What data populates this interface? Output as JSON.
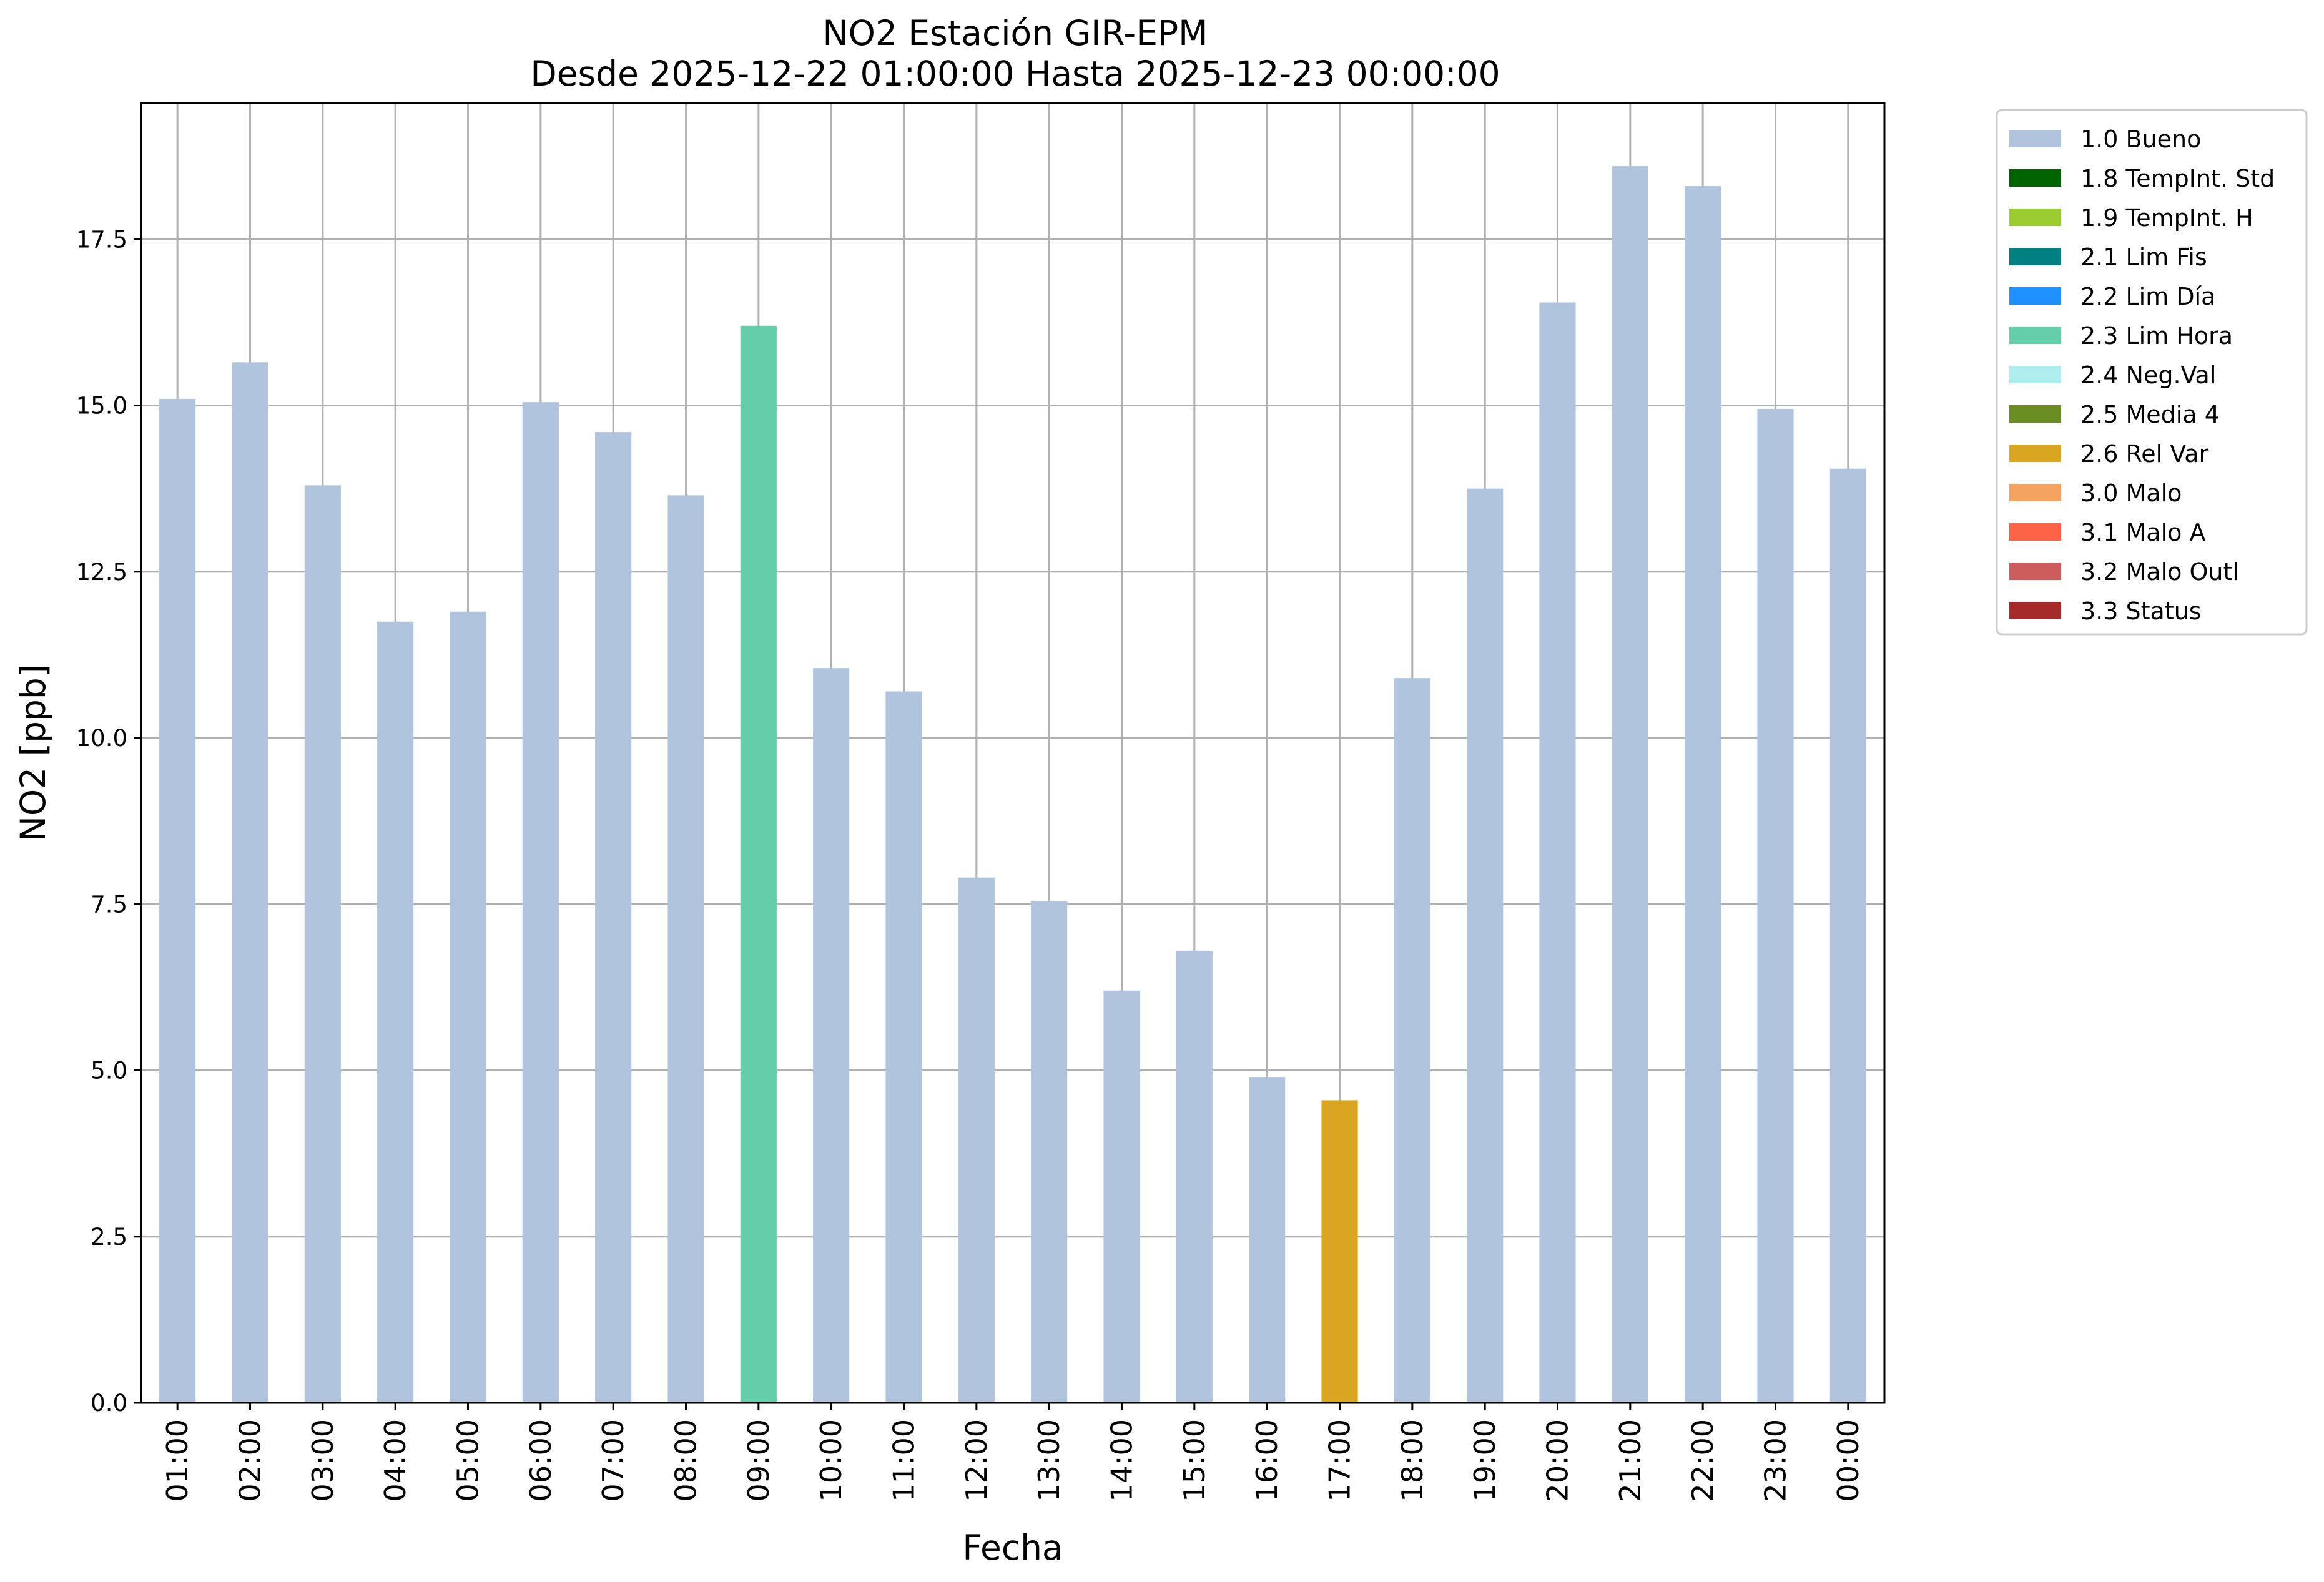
{
  "chart_data": {
    "type": "bar",
    "title": "NO2 Estación GIR-EPM",
    "subtitle": "Desde 2025-12-22 01:00:00 Hasta 2025-12-23 00:00:00",
    "xlabel": "Fecha",
    "ylabel": "NO2 [ppb]",
    "ylim": [
      0,
      19.55
    ],
    "yticks": [
      "0.0",
      "2.5",
      "5.0",
      "7.5",
      "10.0",
      "12.5",
      "15.0",
      "17.5"
    ],
    "ytick_values": [
      0,
      2.5,
      5,
      7.5,
      10,
      12.5,
      15,
      17.5
    ],
    "grid": true,
    "legend_position": "outside-right-top",
    "categories": [
      "01:00",
      "02:00",
      "03:00",
      "04:00",
      "05:00",
      "06:00",
      "07:00",
      "08:00",
      "09:00",
      "10:00",
      "11:00",
      "12:00",
      "13:00",
      "14:00",
      "15:00",
      "16:00",
      "17:00",
      "18:00",
      "19:00",
      "20:00",
      "21:00",
      "22:00",
      "23:00",
      "00:00"
    ],
    "values": [
      15.1,
      15.65,
      13.8,
      11.75,
      11.9,
      15.05,
      14.6,
      13.65,
      16.2,
      11.05,
      10.7,
      7.9,
      7.55,
      6.2,
      6.8,
      4.9,
      4.55,
      10.9,
      13.75,
      16.55,
      18.6,
      18.3,
      14.95,
      14.05
    ],
    "flags": [
      "1.0 Bueno",
      "1.0 Bueno",
      "1.0 Bueno",
      "1.0 Bueno",
      "1.0 Bueno",
      "1.0 Bueno",
      "1.0 Bueno",
      "1.0 Bueno",
      "2.3 Lim Hora",
      "1.0 Bueno",
      "1.0 Bueno",
      "1.0 Bueno",
      "1.0 Bueno",
      "1.0 Bueno",
      "1.0 Bueno",
      "1.0 Bueno",
      "2.6 Rel Var",
      "1.0 Bueno",
      "1.0 Bueno",
      "1.0 Bueno",
      "1.0 Bueno",
      "1.0 Bueno",
      "1.0 Bueno",
      "1.0 Bueno"
    ],
    "legend": [
      {
        "label": "1.0 Bueno",
        "color": "#b0c4de"
      },
      {
        "label": "1.8 TempInt. Std",
        "color": "#006400"
      },
      {
        "label": "1.9 TempInt. H",
        "color": "#9acd32"
      },
      {
        "label": "2.1 Lim Fis",
        "color": "#008080"
      },
      {
        "label": "2.2 Lim Día",
        "color": "#1e90ff"
      },
      {
        "label": "2.3 Lim Hora",
        "color": "#66cdaa"
      },
      {
        "label": "2.4 Neg.Val",
        "color": "#afeeee"
      },
      {
        "label": "2.5 Media 4",
        "color": "#6b8e23"
      },
      {
        "label": "2.6 Rel Var",
        "color": "#daa520"
      },
      {
        "label": "3.0 Malo",
        "color": "#f4a460"
      },
      {
        "label": "3.1 Malo A",
        "color": "#ff6347"
      },
      {
        "label": "3.2 Malo Outl",
        "color": "#cd5c5c"
      },
      {
        "label": "3.3 Status",
        "color": "#a52a2a"
      }
    ]
  }
}
